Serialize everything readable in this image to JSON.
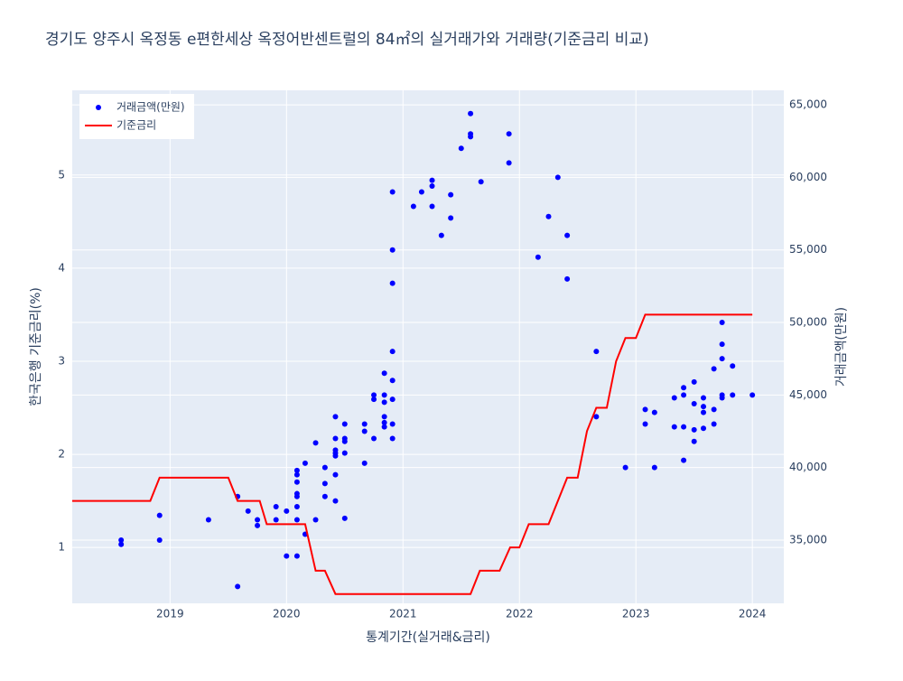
{
  "chart_data": {
    "type": "scatter",
    "title": "경기도 양주시 옥정동 e편한세상 옥정어반센트럴의 84㎡의 실거래가와 거래량(기준금리 비교)",
    "xlabel": "통계기간(실거래&금리)",
    "ylabel": "한국은행 기준금리(%)",
    "y2label": "거래금액(만원)",
    "xlim": [
      2018.16,
      2024.27
    ],
    "xticks": [
      2019,
      2020,
      2021,
      2022,
      2023,
      2024
    ],
    "ylim": [
      0.4,
      5.91
    ],
    "yticks": [
      1,
      2,
      3,
      4,
      5
    ],
    "y2lim": [
      30640,
      66000
    ],
    "y2ticks": [
      {
        "value": 35000,
        "label": "35,000"
      },
      {
        "value": 40000,
        "label": "40,000"
      },
      {
        "value": 45000,
        "label": "45,000"
      },
      {
        "value": 50000,
        "label": "50,000"
      },
      {
        "value": 55000,
        "label": "55,000"
      },
      {
        "value": 60000,
        "label": "60,000"
      },
      {
        "value": 65000,
        "label": "65,000"
      }
    ],
    "grid": true,
    "legend": "top-left",
    "series": [
      {
        "name": "거래금액(만원)",
        "color": "#0000ff",
        "type": "scatter",
        "axis": "y2",
        "x": [
          2018.58,
          2018.58,
          2018.91,
          2018.91,
          2019.33,
          2019.58,
          2019.58,
          2019.67,
          2019.75,
          2019.75,
          2019.91,
          2019.91,
          2020.0,
          2020.0,
          2020.09,
          2020.09,
          2020.09,
          2020.09,
          2020.09,
          2020.09,
          2020.09,
          2020.09,
          2020.16,
          2020.16,
          2020.25,
          2020.25,
          2020.33,
          2020.33,
          2020.33,
          2020.42,
          2020.42,
          2020.42,
          2020.42,
          2020.42,
          2020.42,
          2020.42,
          2020.5,
          2020.5,
          2020.5,
          2020.5,
          2020.5,
          2020.67,
          2020.67,
          2020.67,
          2020.75,
          2020.75,
          2020.75,
          2020.84,
          2020.84,
          2020.84,
          2020.84,
          2020.84,
          2020.84,
          2020.91,
          2020.91,
          2020.91,
          2020.91,
          2020.91,
          2020.91,
          2020.91,
          2020.91,
          2021.09,
          2021.16,
          2021.25,
          2021.25,
          2021.25,
          2021.33,
          2021.41,
          2021.41,
          2021.5,
          2021.58,
          2021.58,
          2021.58,
          2021.67,
          2021.91,
          2021.91,
          2022.16,
          2022.25,
          2022.33,
          2022.41,
          2022.41,
          2022.66,
          2022.66,
          2022.91,
          2023.08,
          2023.08,
          2023.16,
          2023.16,
          2023.33,
          2023.33,
          2023.41,
          2023.41,
          2023.41,
          2023.41,
          2023.5,
          2023.5,
          2023.5,
          2023.5,
          2023.58,
          2023.58,
          2023.58,
          2023.58,
          2023.67,
          2023.67,
          2023.67,
          2023.74,
          2023.74,
          2023.74,
          2023.74,
          2023.74,
          2023.83,
          2023.83,
          2024.0
        ],
        "values": [
          35000,
          34700,
          36700,
          35000,
          36400,
          38000,
          31800,
          37000,
          36400,
          36000,
          37300,
          36400,
          37000,
          33900,
          37300,
          36400,
          38200,
          38000,
          39000,
          39500,
          39800,
          33900,
          35400,
          40300,
          36400,
          41700,
          38000,
          38900,
          40000,
          37700,
          39500,
          40800,
          41000,
          41200,
          42000,
          43500,
          36500,
          41000,
          41800,
          42000,
          43000,
          40300,
          42500,
          43000,
          42000,
          44700,
          45000,
          43100,
          42800,
          43500,
          44500,
          45000,
          46500,
          42000,
          43000,
          44700,
          46000,
          48000,
          52700,
          55000,
          59000,
          58000,
          59000,
          59400,
          59800,
          58000,
          56000,
          58800,
          57200,
          62000,
          62800,
          63000,
          64400,
          59700,
          63000,
          61000,
          54500,
          57300,
          60000,
          53000,
          56000,
          48000,
          43500,
          40000,
          43000,
          44000,
          40000,
          43800,
          42800,
          44800,
          40500,
          42800,
          45000,
          45500,
          42600,
          41800,
          44400,
          45900,
          42700,
          43800,
          44200,
          44800,
          43000,
          44000,
          46800,
          44800,
          45000,
          47500,
          48500,
          50000,
          45000,
          47000,
          45000
        ]
      },
      {
        "name": "기준금리",
        "color": "#ff0000",
        "type": "line",
        "x": [
          2018.16,
          2018.83,
          2018.91,
          2019.5,
          2019.58,
          2019.77,
          2019.83,
          2020.16,
          2020.25,
          2020.33,
          2020.42,
          2021.58,
          2021.66,
          2021.83,
          2021.92,
          2022.0,
          2022.08,
          2022.25,
          2022.33,
          2022.41,
          2022.5,
          2022.58,
          2022.66,
          2022.75,
          2022.83,
          2022.91,
          2023.0,
          2023.08,
          2024.0
        ],
        "values": [
          1.5,
          1.5,
          1.75,
          1.75,
          1.5,
          1.5,
          1.25,
          1.25,
          0.75,
          0.75,
          0.5,
          0.5,
          0.75,
          0.75,
          1.0,
          1.0,
          1.25,
          1.25,
          1.5,
          1.75,
          1.75,
          2.25,
          2.5,
          2.5,
          3.0,
          3.25,
          3.25,
          3.5,
          3.5
        ]
      }
    ]
  }
}
